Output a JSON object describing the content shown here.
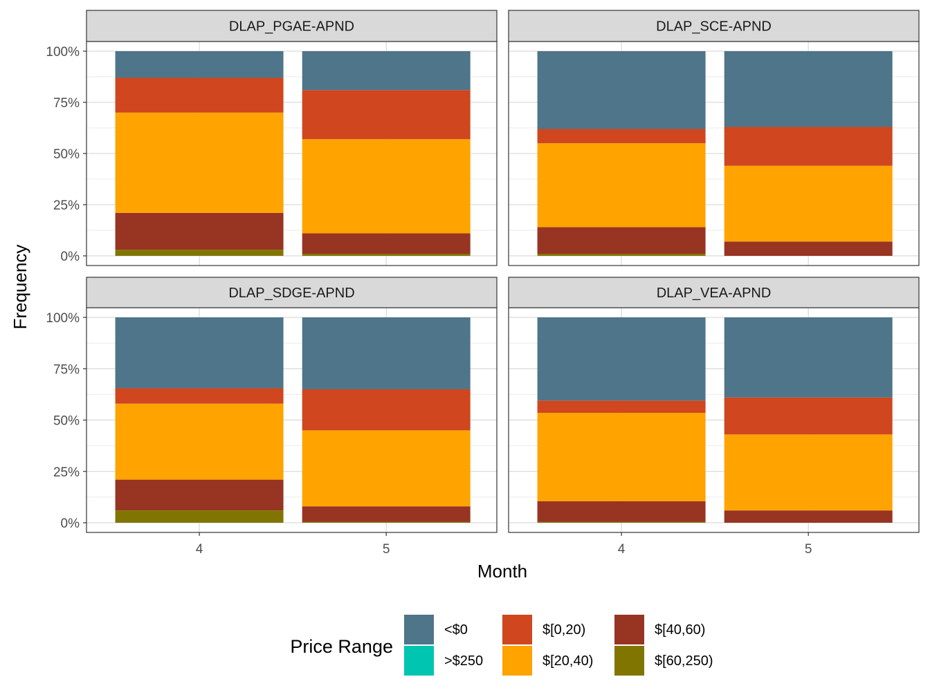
{
  "chart_data": {
    "type": "bar",
    "stacked": true,
    "grid": true,
    "xlabel": "Month",
    "ylabel": "Frequency",
    "ylim": [
      0,
      1
    ],
    "y_ticks": [
      "0%",
      "25%",
      "50%",
      "75%",
      "100%"
    ],
    "categories": [
      "4",
      "5"
    ],
    "legend": {
      "title": "Price Range",
      "position": "bottom",
      "items": [
        {
          "label": "<$0",
          "color": "#4E7589"
        },
        {
          "label": ">$250",
          "color": "#00C5B0"
        },
        {
          "label": "$[0,20)",
          "color": "#CF461F"
        },
        {
          "label": "$[20,40)",
          "color": "#FEA300"
        },
        {
          "label": "$[40,60)",
          "color": "#983422"
        },
        {
          "label": "$[60,250)",
          "color": "#807500"
        }
      ]
    },
    "stack_order": [
      "$[60,250)",
      "$[40,60)",
      "$[20,40)",
      "$[0,20)",
      ">$250",
      "<$0"
    ],
    "panels": [
      {
        "title": "DLAP_PGAE-APND",
        "series": [
          {
            "name": "$[60,250)",
            "values": [
              0.03,
              0.01
            ]
          },
          {
            "name": "$[40,60)",
            "values": [
              0.18,
              0.1
            ]
          },
          {
            "name": "$[20,40)",
            "values": [
              0.49,
              0.46
            ]
          },
          {
            "name": "$[0,20)",
            "values": [
              0.17,
              0.24
            ]
          },
          {
            "name": ">$250",
            "values": [
              0.0,
              0.0
            ]
          },
          {
            "name": "<$0",
            "values": [
              0.13,
              0.19
            ]
          }
        ]
      },
      {
        "title": "DLAP_SCE-APND",
        "series": [
          {
            "name": "$[60,250)",
            "values": [
              0.01,
              0.0
            ]
          },
          {
            "name": "$[40,60)",
            "values": [
              0.13,
              0.07
            ]
          },
          {
            "name": "$[20,40)",
            "values": [
              0.41,
              0.37
            ]
          },
          {
            "name": "$[0,20)",
            "values": [
              0.07,
              0.19
            ]
          },
          {
            "name": ">$250",
            "values": [
              0.0,
              0.0
            ]
          },
          {
            "name": "<$0",
            "values": [
              0.38,
              0.37
            ]
          }
        ]
      },
      {
        "title": "DLAP_SDGE-APND",
        "series": [
          {
            "name": "$[60,250)",
            "values": [
              0.06,
              0.005
            ]
          },
          {
            "name": "$[40,60)",
            "values": [
              0.15,
              0.075
            ]
          },
          {
            "name": "$[20,40)",
            "values": [
              0.37,
              0.37
            ]
          },
          {
            "name": "$[0,20)",
            "values": [
              0.075,
              0.2
            ]
          },
          {
            "name": ">$250",
            "values": [
              0.0,
              0.0
            ]
          },
          {
            "name": "<$0",
            "values": [
              0.345,
              0.35
            ]
          }
        ]
      },
      {
        "title": "DLAP_VEA-APND",
        "series": [
          {
            "name": "$[60,250)",
            "values": [
              0.005,
              0.0
            ]
          },
          {
            "name": "$[40,60)",
            "values": [
              0.1,
              0.06
            ]
          },
          {
            "name": "$[20,40)",
            "values": [
              0.43,
              0.37
            ]
          },
          {
            "name": "$[0,20)",
            "values": [
              0.06,
              0.18
            ]
          },
          {
            "name": ">$250",
            "values": [
              0.0,
              0.0
            ]
          },
          {
            "name": "<$0",
            "values": [
              0.405,
              0.39
            ]
          }
        ]
      }
    ]
  }
}
